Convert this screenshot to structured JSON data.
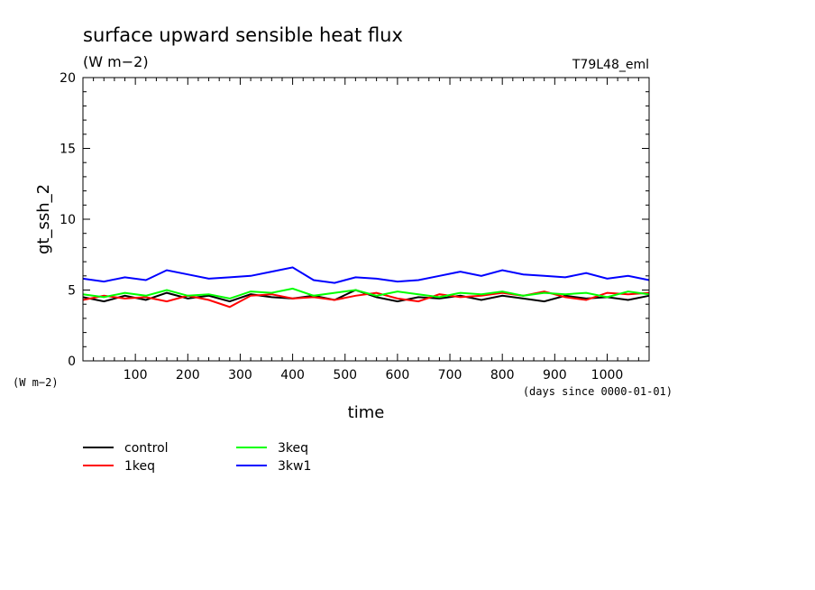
{
  "chart_data": {
    "type": "line",
    "title": "surface upward sensible heat flux",
    "units": "(W m−2)",
    "run_label": "T79L48_eml",
    "xlabel": "time",
    "x_units": "(days since 0000-01-01)",
    "ylabel": "gt_ssh_2",
    "y_units": "(W m−2)",
    "xlim": [
      0,
      1080
    ],
    "ylim": [
      0,
      20
    ],
    "x_ticks": [
      100,
      200,
      300,
      400,
      500,
      600,
      700,
      800,
      900,
      1000
    ],
    "y_ticks": [
      0,
      5,
      10,
      15,
      20
    ],
    "grid": false,
    "legend_position": "bottom-left",
    "series": [
      {
        "name": "control",
        "color": "#000000",
        "x": [
          0,
          40,
          80,
          120,
          160,
          200,
          240,
          280,
          320,
          360,
          400,
          440,
          480,
          520,
          560,
          600,
          640,
          680,
          720,
          760,
          800,
          840,
          880,
          920,
          960,
          1000,
          1040,
          1080
        ],
        "y": [
          4.5,
          4.2,
          4.6,
          4.3,
          4.8,
          4.4,
          4.6,
          4.2,
          4.7,
          4.5,
          4.4,
          4.6,
          4.3,
          5.0,
          4.5,
          4.2,
          4.5,
          4.4,
          4.6,
          4.3,
          4.6,
          4.4,
          4.2,
          4.6,
          4.4,
          4.5,
          4.3,
          4.6
        ]
      },
      {
        "name": "1keq",
        "color": "#ff0000",
        "x": [
          0,
          40,
          80,
          120,
          160,
          200,
          240,
          280,
          320,
          360,
          400,
          440,
          480,
          520,
          560,
          600,
          640,
          680,
          720,
          760,
          800,
          840,
          880,
          920,
          960,
          1000,
          1040,
          1080
        ],
        "y": [
          4.3,
          4.6,
          4.4,
          4.5,
          4.2,
          4.6,
          4.3,
          3.8,
          4.6,
          4.7,
          4.4,
          4.5,
          4.3,
          4.6,
          4.8,
          4.4,
          4.2,
          4.7,
          4.5,
          4.6,
          4.8,
          4.6,
          4.9,
          4.5,
          4.3,
          4.8,
          4.7,
          4.8
        ]
      },
      {
        "name": "3keq",
        "color": "#00ff00",
        "x": [
          0,
          40,
          80,
          120,
          160,
          200,
          240,
          280,
          320,
          360,
          400,
          440,
          480,
          520,
          560,
          600,
          640,
          680,
          720,
          760,
          800,
          840,
          880,
          920,
          960,
          1000,
          1040,
          1080
        ],
        "y": [
          4.7,
          4.5,
          4.8,
          4.6,
          5.0,
          4.6,
          4.7,
          4.4,
          4.9,
          4.8,
          5.1,
          4.6,
          4.8,
          5.0,
          4.6,
          4.9,
          4.7,
          4.5,
          4.8,
          4.7,
          4.9,
          4.6,
          4.8,
          4.7,
          4.8,
          4.5,
          4.9,
          4.7
        ]
      },
      {
        "name": "3kw1",
        "color": "#0000ff",
        "x": [
          0,
          40,
          80,
          120,
          160,
          200,
          240,
          280,
          320,
          360,
          400,
          440,
          480,
          520,
          560,
          600,
          640,
          680,
          720,
          760,
          800,
          840,
          880,
          920,
          960,
          1000,
          1040,
          1080
        ],
        "y": [
          5.8,
          5.6,
          5.9,
          5.7,
          6.4,
          6.1,
          5.8,
          5.9,
          6.0,
          6.3,
          6.6,
          5.7,
          5.5,
          5.9,
          5.8,
          5.6,
          5.7,
          6.0,
          6.3,
          6.0,
          6.4,
          6.1,
          6.0,
          5.9,
          6.2,
          5.8,
          6.0,
          5.7
        ]
      }
    ]
  }
}
